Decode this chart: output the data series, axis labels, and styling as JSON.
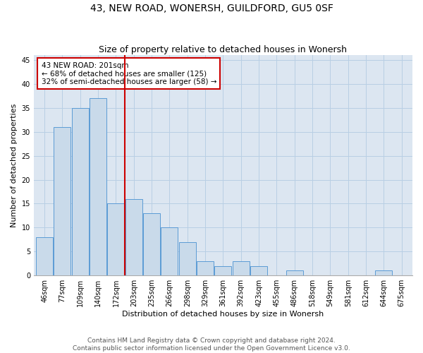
{
  "title": "43, NEW ROAD, WONERSH, GUILDFORD, GU5 0SF",
  "subtitle": "Size of property relative to detached houses in Wonersh",
  "xlabel": "Distribution of detached houses by size in Wonersh",
  "ylabel": "Number of detached properties",
  "bar_labels": [
    "46sqm",
    "77sqm",
    "109sqm",
    "140sqm",
    "172sqm",
    "203sqm",
    "235sqm",
    "266sqm",
    "298sqm",
    "329sqm",
    "361sqm",
    "392sqm",
    "423sqm",
    "455sqm",
    "486sqm",
    "518sqm",
    "549sqm",
    "581sqm",
    "612sqm",
    "644sqm",
    "675sqm"
  ],
  "bar_values": [
    8,
    31,
    35,
    37,
    15,
    16,
    13,
    10,
    7,
    3,
    2,
    3,
    2,
    0,
    1,
    0,
    0,
    0,
    0,
    1,
    0
  ],
  "bar_color": "#c9daea",
  "bar_edge_color": "#5b9bd5",
  "ref_line_color": "#cc0000",
  "annotation_text": "43 NEW ROAD: 201sqm\n← 68% of detached houses are smaller (125)\n32% of semi-detached houses are larger (58) →",
  "annotation_box_color": "#ffffff",
  "annotation_box_edge_color": "#cc0000",
  "ylim": [
    0,
    46
  ],
  "yticks": [
    0,
    5,
    10,
    15,
    20,
    25,
    30,
    35,
    40,
    45
  ],
  "grid_color": "#b8cfe4",
  "background_color": "#dce6f1",
  "footer": "Contains HM Land Registry data © Crown copyright and database right 2024.\nContains public sector information licensed under the Open Government Licence v3.0.",
  "title_fontsize": 10,
  "subtitle_fontsize": 9,
  "axis_label_fontsize": 8,
  "tick_fontsize": 7,
  "annotation_fontsize": 7.5,
  "footer_fontsize": 6.5
}
